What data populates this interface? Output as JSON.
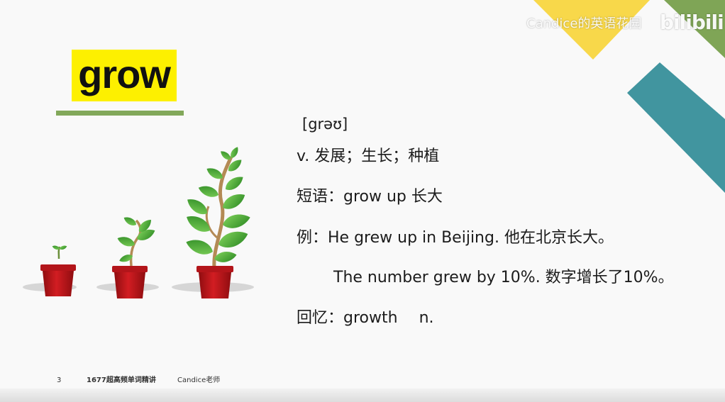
{
  "colors": {
    "highlight": "#fdf000",
    "underline": "#82a85a",
    "yellow_triangle": "#f8d84a",
    "green_triangle": "#7fa556",
    "teal_band": "#41959f",
    "pot": "#c8171c",
    "leaf": "#3e9b2c"
  },
  "watermark": {
    "channel": "Candice的英语花园",
    "platform": "bilibili"
  },
  "word": "grow",
  "phonetic": "[grəʊ]",
  "definition": "v. 发展；生长；种植",
  "phrase": {
    "label": "短语：",
    "text": "grow up 长大"
  },
  "example": {
    "label": "例：",
    "sentence1": "He grew up in Beijing. 他在北京长大。",
    "sentence2": "The number grew by 10%. 数字增长了10%。"
  },
  "recall": {
    "label": "回忆：",
    "word": "growth",
    "pos": "n."
  },
  "illustration": {
    "icons": [
      "sprout-pot-icon",
      "young-plant-pot-icon",
      "grown-plant-pot-icon"
    ]
  },
  "footer": {
    "page_number": "3",
    "course": "1677超高频单词精讲",
    "teacher": "Candice老师"
  }
}
